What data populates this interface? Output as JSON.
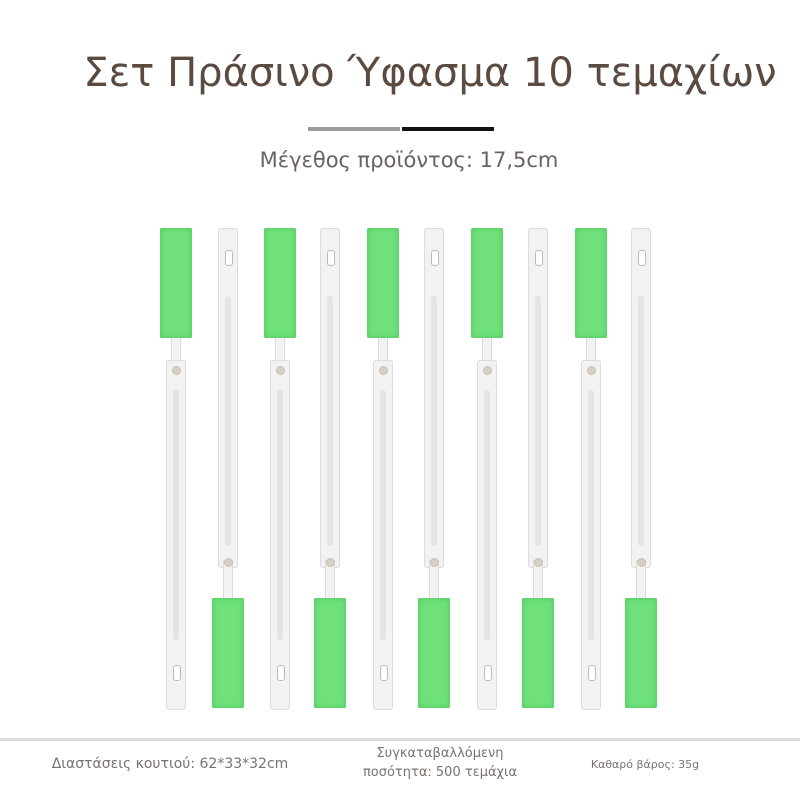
{
  "title": "Σετ Πράσινο Ύφασμα 10 τεμαχίων",
  "subtitle": "Μέγεθος προϊόντος: 17,5cm",
  "colors": {
    "sponge": "#6fe07a",
    "title": "#5a4a40"
  },
  "product": {
    "count": 10,
    "name": "green-sponge-cleaning-stick"
  },
  "footer": {
    "box_size": "Διαστάσεις κουτιού: 62*33*32cm",
    "quantity_line1": "Συγκαταβαλλόμενη",
    "quantity_line2": "ποσότητα: 500 τεμάχια",
    "net_weight": "Καθαρό βάρος: 35g"
  }
}
